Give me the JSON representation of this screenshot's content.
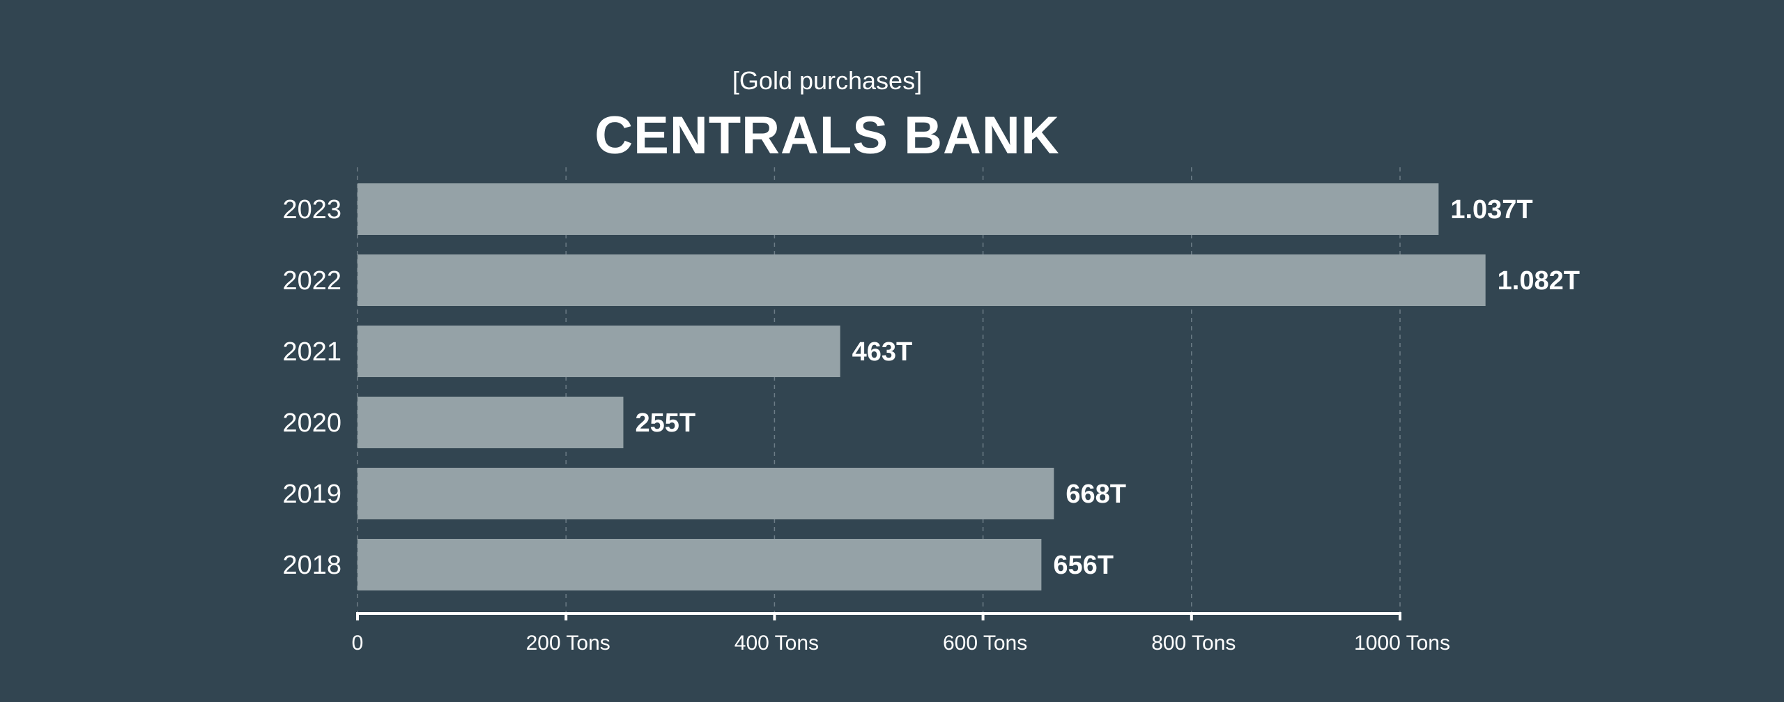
{
  "chart_data": {
    "type": "bar",
    "orientation": "horizontal",
    "subtitle": "[Gold purchases]",
    "title": "CENTRALS BANK",
    "categories": [
      "2023",
      "2022",
      "2021",
      "2020",
      "2019",
      "2018"
    ],
    "values": [
      1037,
      1082,
      463,
      255,
      668,
      656
    ],
    "value_labels": [
      "1.037T",
      "1.082T",
      "463T",
      "255T",
      "668T",
      "656T"
    ],
    "x_ticks": [
      0,
      200,
      400,
      600,
      800,
      1000
    ],
    "x_tick_labels": [
      "0",
      "200 Tons",
      "400 Tons",
      "600 Tons",
      "800 Tons",
      "1000 Tons"
    ],
    "xlim": [
      0,
      1000
    ],
    "grid": true,
    "colors": {
      "background": "#324551",
      "bar": "#95a2a7",
      "text": "#ffffff"
    }
  }
}
